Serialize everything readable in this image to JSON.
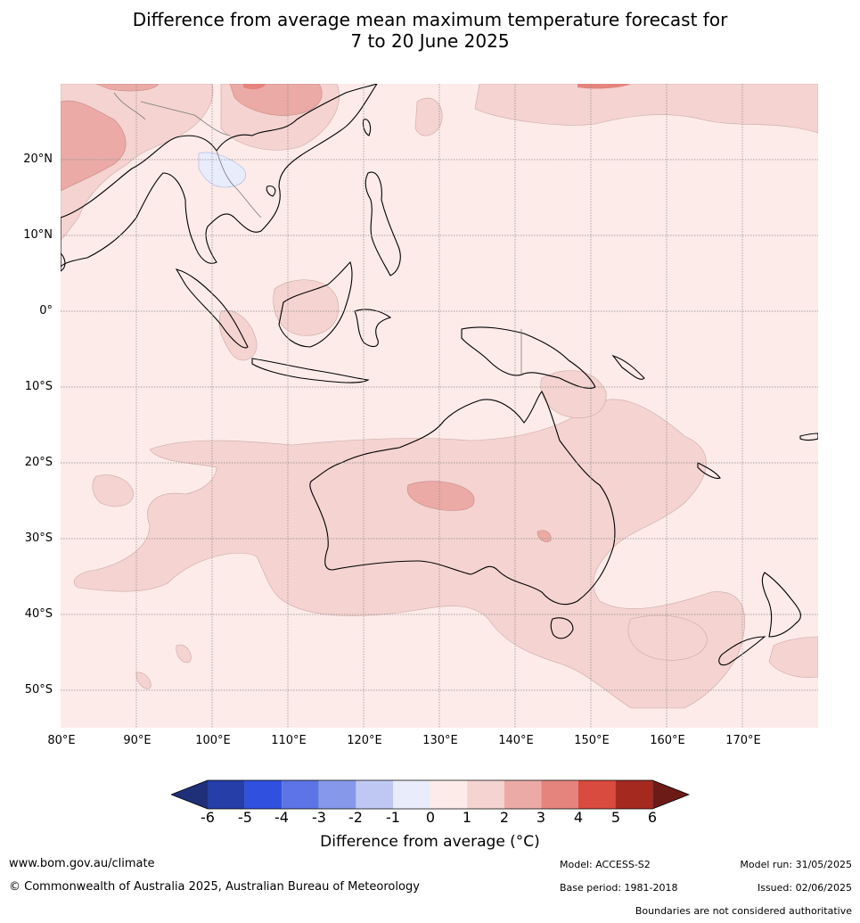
{
  "title_line1": "Difference from average mean maximum temperature forecast for",
  "title_line2": "7 to 20 June 2025",
  "map": {
    "lat_labels": [
      "20°N",
      "10°N",
      "0°",
      "10°S",
      "20°S",
      "30°S",
      "40°S",
      "50°S"
    ],
    "lon_labels": [
      "80°E",
      "90°E",
      "100°E",
      "110°E",
      "120°E",
      "130°E",
      "140°E",
      "150°E",
      "160°E",
      "170°E"
    ],
    "background_color": "#fcebe9"
  },
  "colorbar": {
    "ticks": [
      "-6",
      "-5",
      "-4",
      "-3",
      "-2",
      "-1",
      "0",
      "1",
      "2",
      "3",
      "4",
      "5",
      "6"
    ],
    "colors": [
      "#253ea8",
      "#3050df",
      "#5c74e5",
      "#8598ea",
      "#bec8f3",
      "#e8ecfb",
      "#fcebe9",
      "#f4d3d0",
      "#ebaaa6",
      "#e4847d",
      "#d94a3f",
      "#a62920"
    ],
    "low_extend_color": "#1f2f78",
    "high_extend_color": "#6d1b17",
    "label": "Difference from average (°C)"
  },
  "footer": {
    "website": "www.bom.gov.au/climate",
    "copyright": "© Commonwealth of Australia 2025, Australian Bureau of Meteorology",
    "model": "Model: ACCESS-S2",
    "base_period": "Base period: 1981-2018",
    "model_run": "Model run: 31/05/2025",
    "issued": "Issued: 02/06/2025",
    "disclaimer": "Boundaries are not considered authoritative"
  }
}
